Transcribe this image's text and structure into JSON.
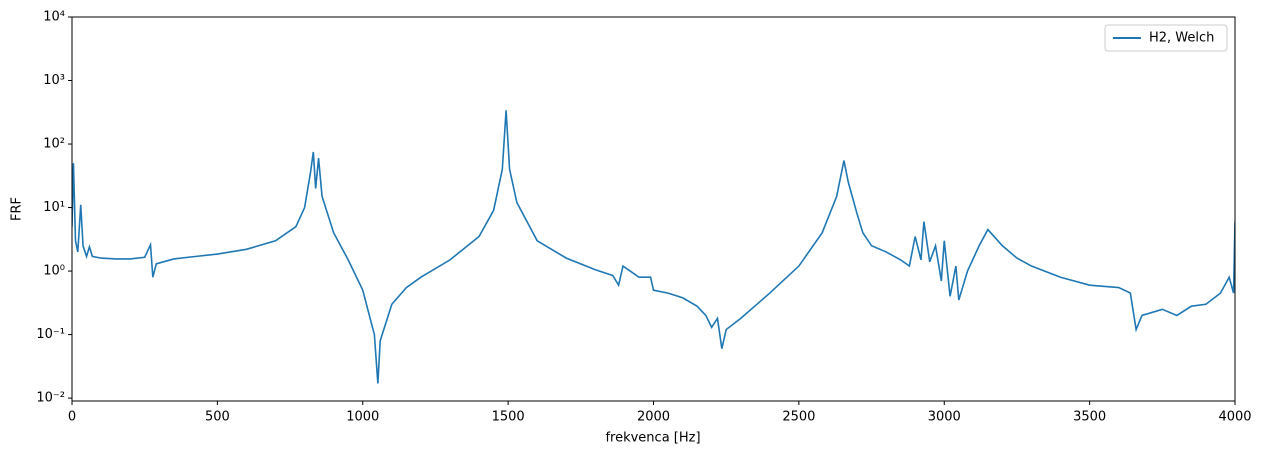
{
  "chart_data": {
    "type": "line",
    "x_label": "frekvenca [Hz]",
    "y_label": "FRF",
    "log_y": true,
    "legend": "upper right",
    "xlim": [
      0,
      4000
    ],
    "xticks": [
      0,
      500,
      1000,
      1500,
      2000,
      2500,
      3000,
      3500,
      4000
    ],
    "ylim": [
      0.009,
      10000
    ],
    "yticks": [
      {
        "value": 0.01,
        "label": "10⁻²"
      },
      {
        "value": 0.1,
        "label": "10⁻¹"
      },
      {
        "value": 1,
        "label": "10⁰"
      },
      {
        "value": 10,
        "label": "10¹"
      },
      {
        "value": 100,
        "label": "10²"
      },
      {
        "value": 1000,
        "label": "10³"
      },
      {
        "value": 10000,
        "label": "10⁴"
      }
    ],
    "x": [
      0,
      5,
      12,
      20,
      30,
      38,
      50,
      60,
      70,
      100,
      150,
      200,
      250,
      270,
      278,
      290,
      350,
      400,
      500,
      600,
      700,
      770,
      800,
      820,
      830,
      838,
      848,
      860,
      900,
      950,
      1000,
      1040,
      1052,
      1060,
      1100,
      1150,
      1200,
      1300,
      1400,
      1450,
      1480,
      1493,
      1505,
      1530,
      1600,
      1700,
      1800,
      1860,
      1880,
      1895,
      1920,
      1950,
      1990,
      2000,
      2050,
      2100,
      2150,
      2180,
      2200,
      2220,
      2235,
      2250,
      2300,
      2400,
      2500,
      2580,
      2630,
      2655,
      2670,
      2700,
      2720,
      2750,
      2800,
      2850,
      2880,
      2900,
      2920,
      2930,
      2950,
      2970,
      2990,
      3000,
      3020,
      3040,
      3050,
      3080,
      3120,
      3150,
      3200,
      3250,
      3300,
      3400,
      3500,
      3600,
      3640,
      3660,
      3680,
      3750,
      3800,
      3850,
      3900,
      3950,
      3980,
      3995,
      4000
    ],
    "series": [
      {
        "name": "H2, Welch",
        "color": "#1f77b4",
        "values": [
          5,
          50,
          3,
          2,
          11,
          2.5,
          1.7,
          2.4,
          1.7,
          1.6,
          1.55,
          1.55,
          1.65,
          2.6,
          0.8,
          1.3,
          1.55,
          1.65,
          1.85,
          2.2,
          3.0,
          5.0,
          10,
          35,
          75,
          20,
          60,
          15,
          4,
          1.5,
          0.5,
          0.1,
          0.017,
          0.08,
          0.3,
          0.55,
          0.8,
          1.5,
          3.5,
          9,
          40,
          340,
          40,
          12,
          3,
          1.6,
          1.05,
          0.85,
          0.6,
          1.2,
          1.0,
          0.8,
          0.8,
          0.5,
          0.45,
          0.38,
          0.28,
          0.2,
          0.13,
          0.18,
          0.06,
          0.12,
          0.18,
          0.45,
          1.2,
          4,
          15,
          55,
          25,
          8,
          4,
          2.5,
          2,
          1.5,
          1.2,
          3.5,
          1.5,
          6,
          1.4,
          2.5,
          0.7,
          3,
          0.4,
          1.2,
          0.35,
          1.0,
          2.5,
          4.5,
          2.5,
          1.6,
          1.2,
          0.8,
          0.6,
          0.55,
          0.45,
          0.12,
          0.2,
          0.25,
          0.2,
          0.28,
          0.3,
          0.45,
          0.8,
          0.45,
          6
        ]
      }
    ]
  }
}
